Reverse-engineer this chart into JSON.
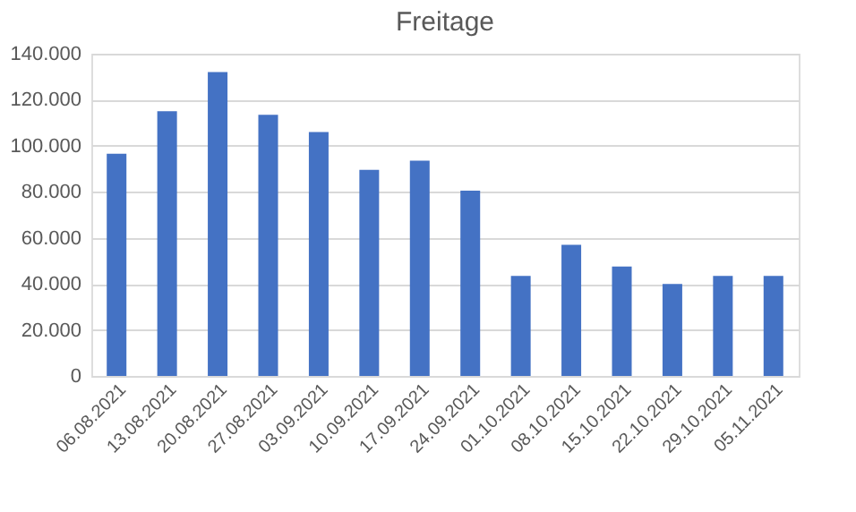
{
  "chart_data": {
    "type": "bar",
    "title": "Freitage",
    "categories": [
      "06.08.2021",
      "13.08.2021",
      "20.08.2021",
      "27.08.2021",
      "03.09.2021",
      "10.09.2021",
      "17.09.2021",
      "24.09.2021",
      "01.10.2021",
      "08.10.2021",
      "15.10.2021",
      "22.10.2021",
      "29.10.2021",
      "05.11.2021"
    ],
    "values": [
      96500,
      115000,
      132000,
      113500,
      106000,
      89500,
      93500,
      80500,
      43500,
      57000,
      47500,
      40000,
      43500,
      43500
    ],
    "color": "#4472c4",
    "ylim": [
      0,
      140000
    ],
    "yticks": [
      0,
      {
        "value": 20000,
        "label": "20.000"
      },
      {
        "value": 40000,
        "label": "40.000"
      },
      {
        "value": 60000,
        "label": "60.000"
      },
      {
        "value": 80000,
        "label": "80.000"
      },
      {
        "value": 100000,
        "label": "100.000"
      },
      {
        "value": 120000,
        "label": "120.000"
      },
      {
        "value": 140000,
        "label": "140.000"
      }
    ],
    "grid": "y"
  }
}
